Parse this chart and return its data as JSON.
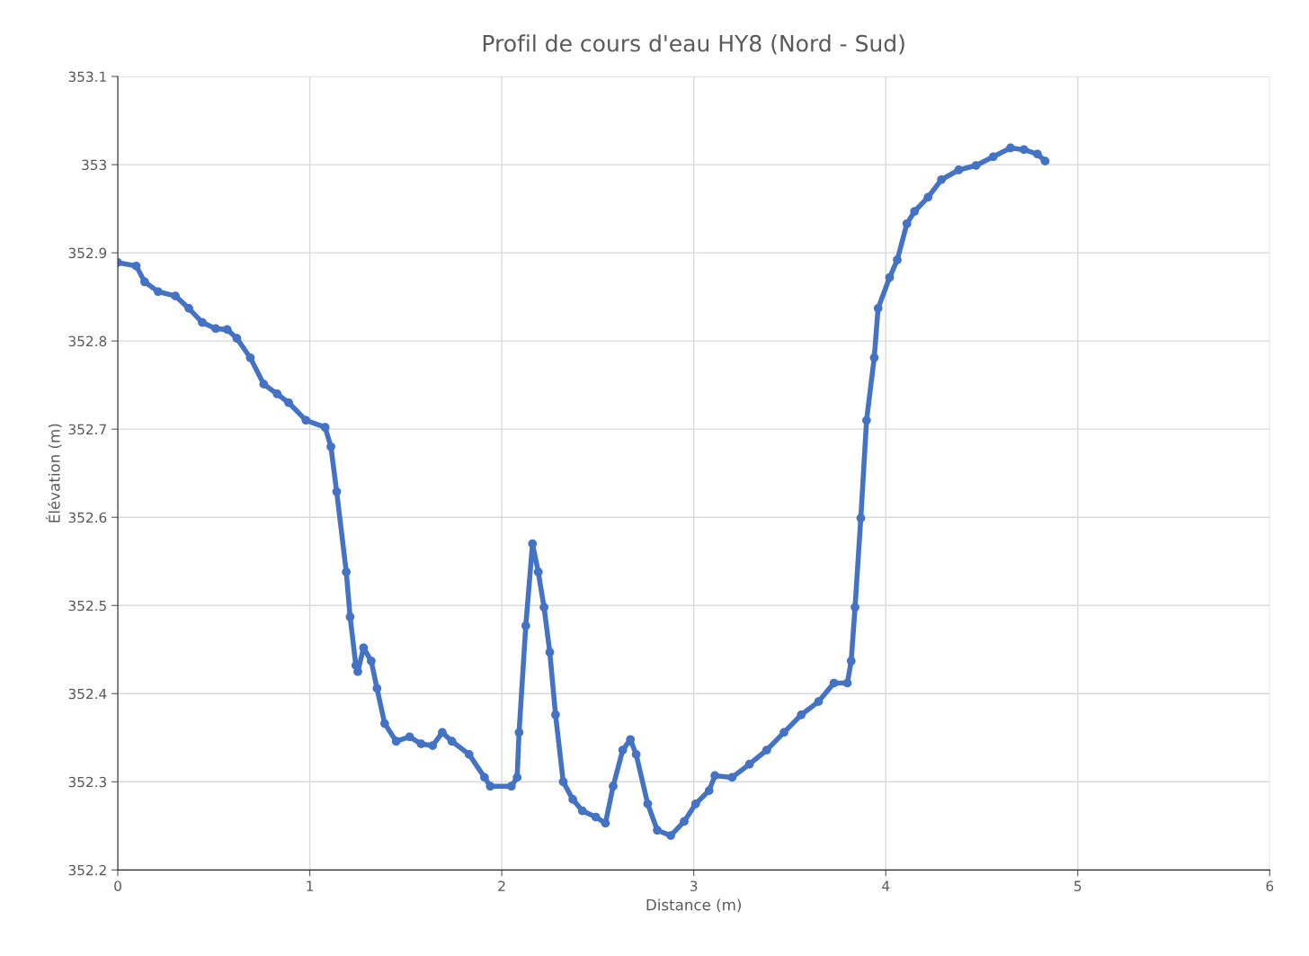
{
  "chart_data": {
    "type": "line",
    "title": "Profil de cours d'eau HY8 (Nord - Sud)",
    "xlabel": "Distance (m)",
    "ylabel": "Élévation (m)",
    "xlim": [
      0,
      6
    ],
    "xticks": [
      0,
      1,
      2,
      3,
      4,
      5,
      6
    ],
    "ylim": [
      352.2,
      353.1
    ],
    "yticks": [
      352.2,
      352.3,
      352.4,
      352.5,
      352.6,
      352.7,
      352.8,
      352.9,
      {
        "value": 353.0,
        "label": "353"
      },
      353.1
    ],
    "grid": true,
    "marker": "circle",
    "line_style": "solid",
    "x": [
      0,
      0.096,
      0.14,
      0.21,
      0.3,
      0.37,
      0.44,
      0.51,
      0.57,
      0.62,
      0.69,
      0.76,
      0.83,
      0.89,
      0.98,
      1.08,
      1.11,
      1.14,
      1.19,
      1.21,
      1.24,
      1.25,
      1.28,
      1.32,
      1.35,
      1.39,
      1.45,
      1.52,
      1.58,
      1.64,
      1.69,
      1.74,
      1.83,
      1.91,
      1.94,
      2.05,
      2.08,
      2.09,
      2.125,
      2.16,
      2.19,
      2.22,
      2.25,
      2.28,
      2.32,
      2.37,
      2.42,
      2.49,
      2.54,
      2.58,
      2.63,
      2.67,
      2.7,
      2.76,
      2.81,
      2.88,
      2.95,
      3.01,
      3.08,
      3.11,
      3.2,
      3.29,
      3.38,
      3.47,
      3.56,
      3.65,
      3.73,
      3.8,
      3.82,
      3.84,
      3.87,
      3.9,
      3.94,
      3.96,
      4.02,
      4.06,
      4.11,
      4.15,
      4.22,
      4.29,
      4.38,
      4.47,
      4.56,
      4.65,
      4.72,
      4.79,
      4.83
    ],
    "series": [
      {
        "color": "#4472c4",
        "values": [
          352.889,
          352.885,
          352.867,
          352.856,
          352.851,
          352.837,
          352.821,
          352.814,
          352.813,
          352.803,
          352.781,
          352.751,
          352.74,
          352.73,
          352.71,
          352.702,
          352.68,
          352.629,
          352.538,
          352.487,
          352.432,
          352.425,
          352.452,
          352.437,
          352.406,
          352.366,
          352.346,
          352.351,
          352.343,
          352.341,
          352.356,
          352.346,
          352.331,
          352.305,
          352.295,
          352.295,
          352.305,
          352.356,
          352.477,
          352.57,
          352.538,
          352.498,
          352.447,
          352.376,
          352.3,
          352.28,
          352.267,
          352.26,
          352.253,
          352.295,
          352.336,
          352.348,
          352.331,
          352.275,
          352.245,
          352.239,
          352.255,
          352.275,
          352.29,
          352.307,
          352.305,
          352.32,
          352.336,
          352.356,
          352.376,
          352.391,
          352.412,
          352.412,
          352.437,
          352.498,
          352.599,
          352.71,
          352.781,
          352.837,
          352.872,
          352.892,
          352.933,
          352.947,
          352.963,
          352.983,
          352.994,
          352.999,
          353.009,
          353.019,
          353.017,
          353.012,
          353.004
        ]
      }
    ]
  }
}
